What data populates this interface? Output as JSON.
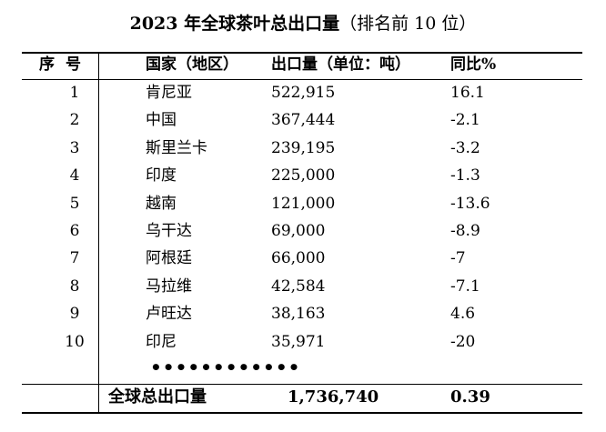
{
  "title": "2023 年全球茶叶总出口量",
  "subtitle": "（排名前 10 位）",
  "headers": {
    "rank": "序号",
    "country": "国家（地区）",
    "volume": "出口量（单位：吨）",
    "change": "同比%"
  },
  "rows": [
    {
      "rank": "1",
      "country": "肯尼亚",
      "volume": "522,915",
      "change": "16.1"
    },
    {
      "rank": "2",
      "country": "中国",
      "volume": "367,444",
      "change": "-2.1"
    },
    {
      "rank": "3",
      "country": "斯里兰卡",
      "volume": "239,195",
      "change": "-3.2"
    },
    {
      "rank": "4",
      "country": "印度",
      "volume": "225,000",
      "change": "-1.3"
    },
    {
      "rank": "5",
      "country": "越南",
      "volume": "121,000",
      "change": "-13.6"
    },
    {
      "rank": "6",
      "country": "乌干达",
      "volume": "69,000",
      "change": "-8.9"
    },
    {
      "rank": "7",
      "country": "阿根廷",
      "volume": "66,000",
      "change": "-7"
    },
    {
      "rank": "8",
      "country": "马拉维",
      "volume": "42,584",
      "change": "-7.1"
    },
    {
      "rank": "9",
      "country": "卢旺达",
      "volume": "38,163",
      "change": "4.6"
    },
    {
      "rank": "10",
      "country": "印尼",
      "volume": "35,971",
      "change": "-20"
    }
  ],
  "ellipsis": "••••••••••••",
  "total": {
    "label": "全球总出口量",
    "volume": "1,736,740",
    "change": "0.39"
  },
  "chart_data": {
    "type": "table",
    "title": "2023 年全球茶叶总出口量（排名前 10 位）",
    "columns": [
      "序号",
      "国家（地区）",
      "出口量（单位：吨）",
      "同比%"
    ],
    "rows": [
      [
        1,
        "肯尼亚",
        522915,
        16.1
      ],
      [
        2,
        "中国",
        367444,
        -2.1
      ],
      [
        3,
        "斯里兰卡",
        239195,
        -3.2
      ],
      [
        4,
        "印度",
        225000,
        -1.3
      ],
      [
        5,
        "越南",
        121000,
        -13.6
      ],
      [
        6,
        "乌干达",
        69000,
        -8.9
      ],
      [
        7,
        "阿根廷",
        66000,
        -7
      ],
      [
        8,
        "马拉维",
        42584,
        -7.1
      ],
      [
        9,
        "卢旺达",
        38163,
        4.6
      ],
      [
        10,
        "印尼",
        35971,
        -20
      ]
    ],
    "total": [
      "全球总出口量",
      1736740,
      0.39
    ]
  }
}
